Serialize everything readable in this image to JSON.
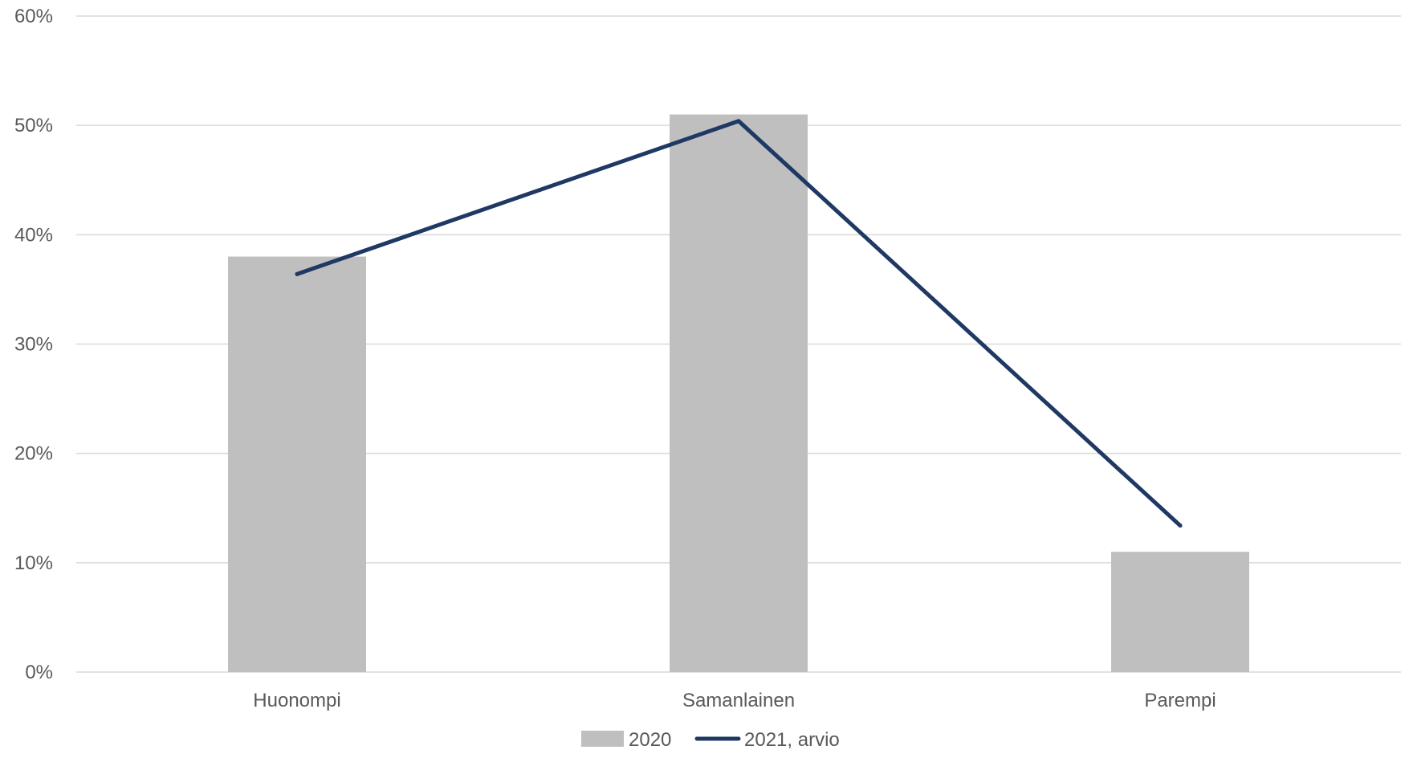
{
  "chart_data": {
    "type": "bar",
    "categories": [
      "Huonompi",
      "Samanlainen",
      "Parempi"
    ],
    "series": [
      {
        "name": "2020",
        "type": "bar",
        "values": [
          38,
          51,
          11
        ],
        "color": "#bfbfbf"
      },
      {
        "name": "2021, arvio",
        "type": "line",
        "values": [
          36.4,
          50.4,
          13.4
        ],
        "color": "#1f3864"
      }
    ],
    "title": "",
    "xlabel": "",
    "ylabel": "",
    "ylim": [
      0,
      60
    ],
    "yticks": [
      0,
      10,
      20,
      30,
      40,
      50,
      60
    ],
    "ytick_format": "percent",
    "grid": true,
    "legend_position": "bottom-center"
  }
}
